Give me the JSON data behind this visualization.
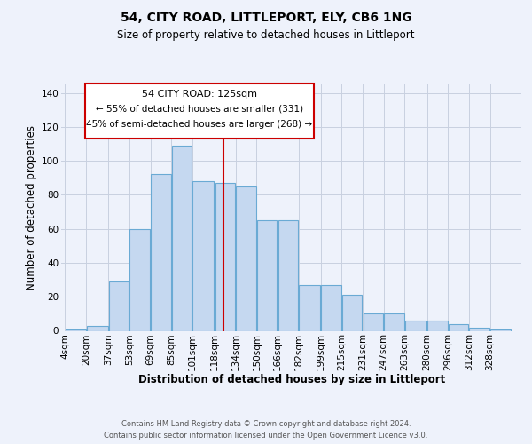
{
  "title": "54, CITY ROAD, LITTLEPORT, ELY, CB6 1NG",
  "subtitle": "Size of property relative to detached houses in Littleport",
  "xlabel": "Distribution of detached houses by size in Littleport",
  "ylabel": "Number of detached properties",
  "footer_line1": "Contains HM Land Registry data © Crown copyright and database right 2024.",
  "footer_line2": "Contains public sector information licensed under the Open Government Licence v3.0.",
  "annotation_title": "54 CITY ROAD: 125sqm",
  "annotation_line2": "← 55% of detached houses are smaller (331)",
  "annotation_line3": "45% of semi-detached houses are larger (268) →",
  "bar_labels": [
    "4sqm",
    "20sqm",
    "37sqm",
    "53sqm",
    "69sqm",
    "85sqm",
    "101sqm",
    "118sqm",
    "134sqm",
    "150sqm",
    "166sqm",
    "182sqm",
    "199sqm",
    "215sqm",
    "231sqm",
    "247sqm",
    "263sqm",
    "280sqm",
    "296sqm",
    "312sqm",
    "328sqm"
  ],
  "bar_heights": [
    1,
    3,
    29,
    60,
    92,
    109,
    88,
    87,
    85,
    65,
    65,
    27,
    27,
    21,
    10,
    10,
    6,
    6,
    4,
    2,
    1
  ],
  "bin_edges": [
    4,
    20,
    37,
    53,
    69,
    85,
    101,
    118,
    134,
    150,
    166,
    182,
    199,
    215,
    231,
    247,
    263,
    280,
    296,
    312,
    328,
    344
  ],
  "bar_color": "#c5d8f0",
  "bar_edge_color": "#6aaad4",
  "vline_x": 125,
  "vline_color": "#cc0000",
  "bg_color": "#eef2fb",
  "grid_color": "#c8d0e0",
  "ylim": [
    0,
    145
  ],
  "yticks": [
    0,
    20,
    40,
    60,
    80,
    100,
    120,
    140
  ],
  "title_fontsize": 10,
  "subtitle_fontsize": 8.5,
  "ylabel_fontsize": 8.5,
  "xlabel_fontsize": 8.5,
  "tick_fontsize": 7.5,
  "footer_fontsize": 6.0
}
